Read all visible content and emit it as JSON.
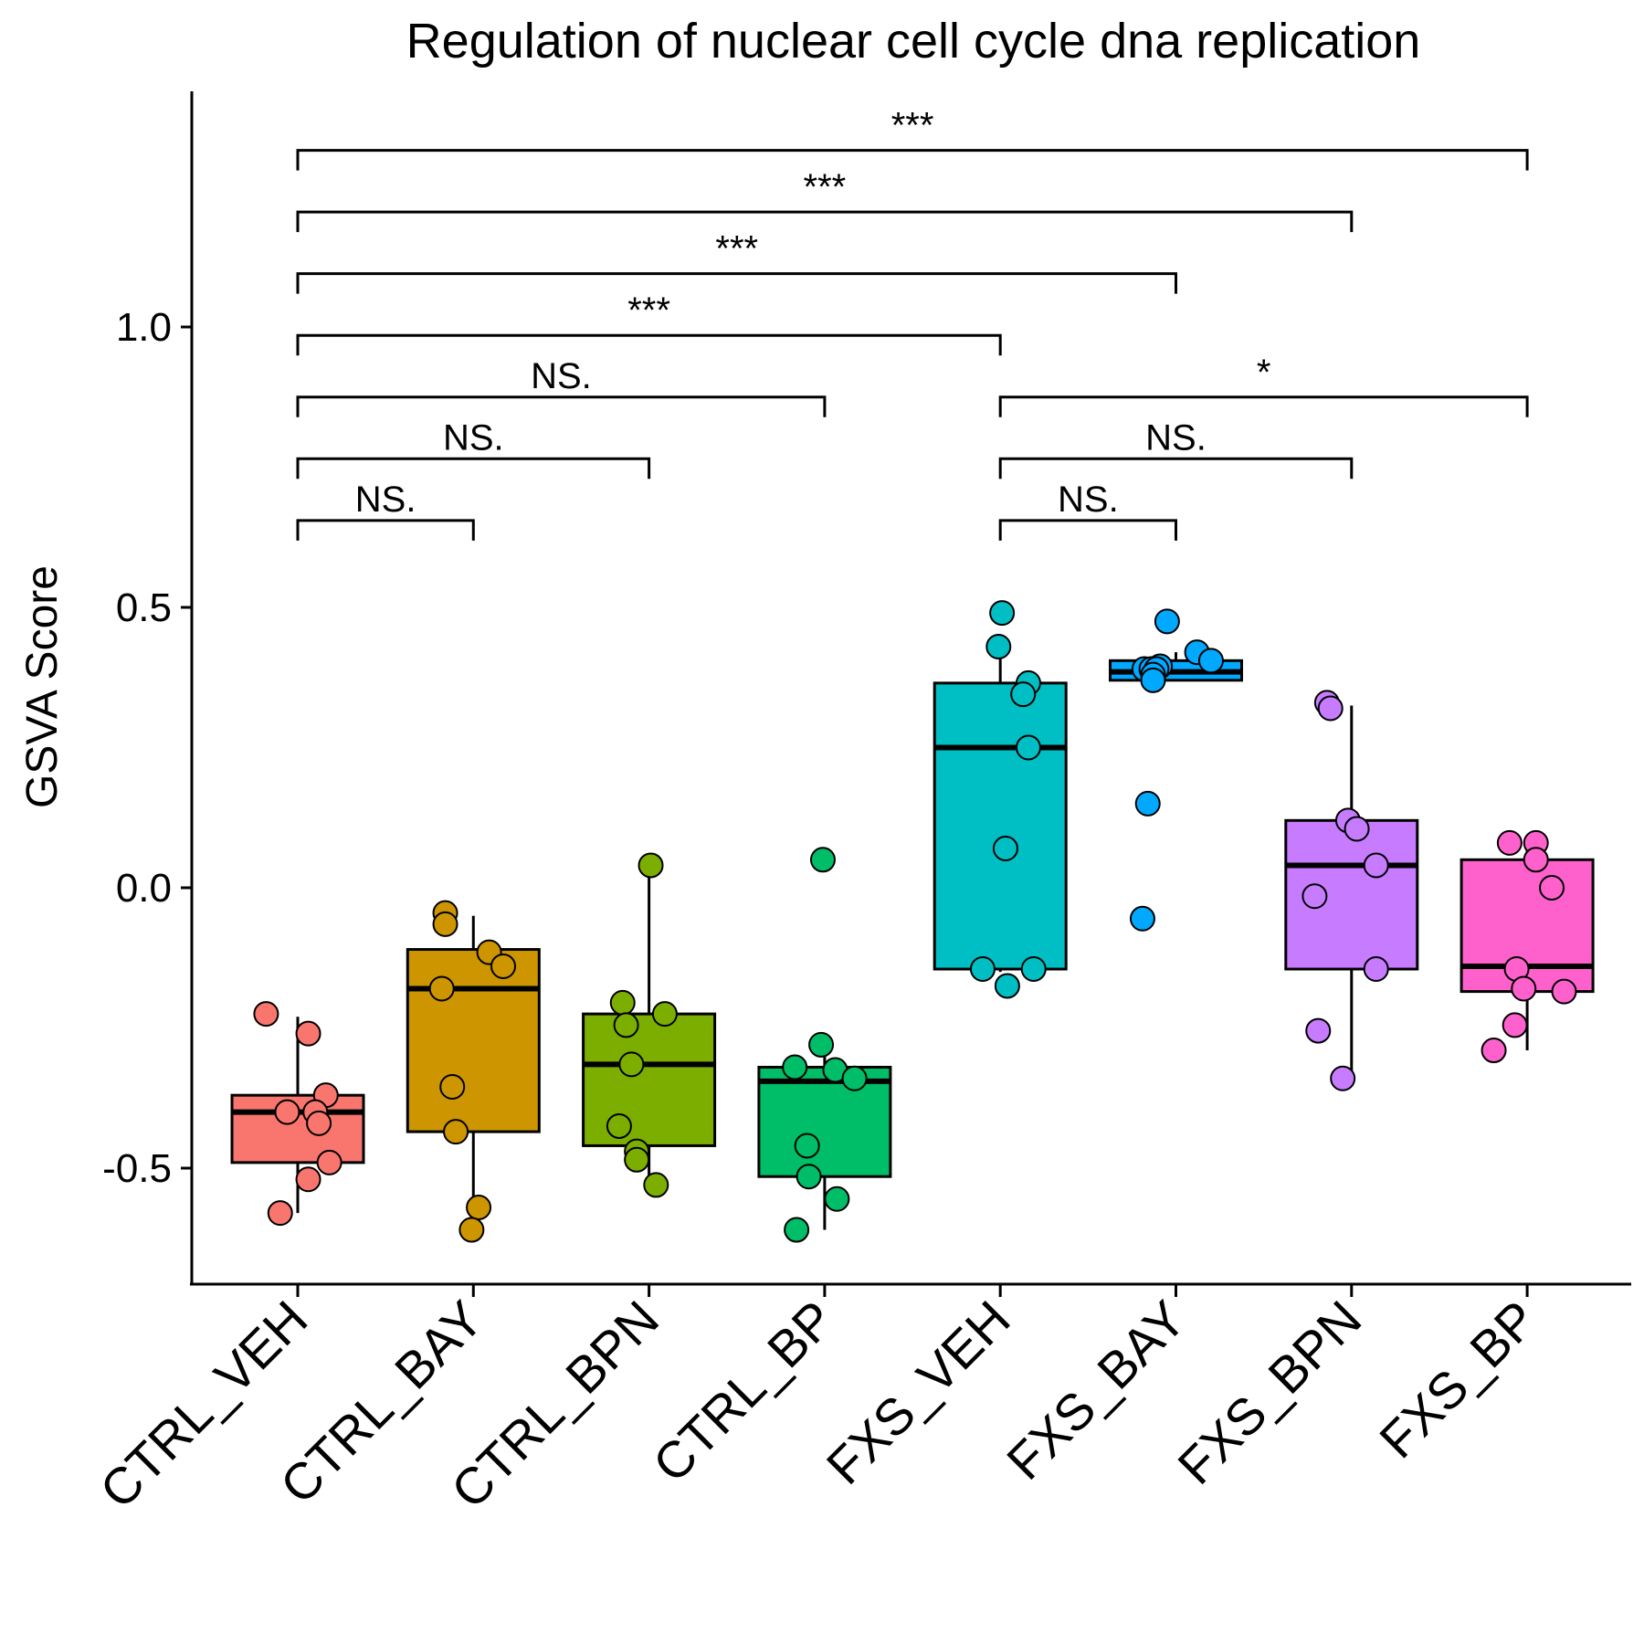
{
  "chart_data": {
    "type": "box",
    "title": "Regulation of nuclear cell cycle dna replication",
    "xlabel": "",
    "ylabel": "GSVA Score",
    "ylim": [
      -0.7,
      1.42
    ],
    "yticks": [
      -0.5,
      0.0,
      0.5,
      1.0
    ],
    "ytick_labels": [
      "-0.5",
      "0.0",
      "0.5",
      "1.0"
    ],
    "categories": [
      "CTRL_VEH",
      "CTRL_BAY",
      "CTRL_BPN",
      "CTRL_BP",
      "FXS_VEH",
      "FXS_BAY",
      "FXS_BPN",
      "FXS_BP"
    ],
    "colors": [
      "#F8766D",
      "#CD9600",
      "#7CAE00",
      "#00BE67",
      "#00BFC4",
      "#00A9FF",
      "#C77CFF",
      "#FF61CC"
    ],
    "grid": false,
    "legend": "none",
    "boxes": [
      {
        "name": "CTRL_VEH",
        "min": -0.58,
        "q1": -0.49,
        "median": -0.4,
        "q3": -0.37,
        "max": -0.23
      },
      {
        "name": "CTRL_BAY",
        "min": -0.61,
        "q1": -0.435,
        "median": -0.18,
        "q3": -0.11,
        "max": -0.05
      },
      {
        "name": "CTRL_BPN",
        "min": -0.53,
        "q1": -0.46,
        "median": -0.315,
        "q3": -0.225,
        "max": 0.04
      },
      {
        "name": "CTRL_BP",
        "min": -0.61,
        "q1": -0.515,
        "median": -0.345,
        "q3": -0.32,
        "max": -0.28
      },
      {
        "name": "FXS_VEH",
        "min": -0.15,
        "q1": -0.145,
        "median": 0.25,
        "q3": 0.365,
        "max": 0.43
      },
      {
        "name": "FXS_BAY",
        "min": 0.37,
        "q1": 0.37,
        "median": 0.385,
        "q3": 0.405,
        "max": 0.42
      },
      {
        "name": "FXS_BPN",
        "min": -0.34,
        "q1": -0.145,
        "median": 0.04,
        "q3": 0.12,
        "max": 0.325
      },
      {
        "name": "FXS_BP",
        "min": -0.29,
        "q1": -0.185,
        "median": -0.14,
        "q3": 0.05,
        "max": 0.08
      }
    ],
    "points": [
      {
        "group": 0,
        "x_offset": -0.18,
        "y": -0.225
      },
      {
        "group": 0,
        "x_offset": 0.06,
        "y": -0.26
      },
      {
        "group": 0,
        "x_offset": 0.16,
        "y": -0.37
      },
      {
        "group": 0,
        "x_offset": -0.06,
        "y": -0.4
      },
      {
        "group": 0,
        "x_offset": 0.1,
        "y": -0.4
      },
      {
        "group": 0,
        "x_offset": 0.12,
        "y": -0.42
      },
      {
        "group": 0,
        "x_offset": 0.18,
        "y": -0.49
      },
      {
        "group": 0,
        "x_offset": 0.06,
        "y": -0.52
      },
      {
        "group": 0,
        "x_offset": -0.1,
        "y": -0.58
      },
      {
        "group": 1,
        "x_offset": -0.16,
        "y": -0.045
      },
      {
        "group": 1,
        "x_offset": -0.16,
        "y": -0.065
      },
      {
        "group": 1,
        "x_offset": 0.09,
        "y": -0.115
      },
      {
        "group": 1,
        "x_offset": 0.17,
        "y": -0.14
      },
      {
        "group": 1,
        "x_offset": -0.18,
        "y": -0.18
      },
      {
        "group": 1,
        "x_offset": -0.12,
        "y": -0.355
      },
      {
        "group": 1,
        "x_offset": -0.1,
        "y": -0.435
      },
      {
        "group": 1,
        "x_offset": 0.03,
        "y": -0.57
      },
      {
        "group": 1,
        "x_offset": -0.01,
        "y": -0.61
      },
      {
        "group": 2,
        "x_offset": 0.01,
        "y": 0.04
      },
      {
        "group": 2,
        "x_offset": -0.15,
        "y": -0.205
      },
      {
        "group": 2,
        "x_offset": 0.09,
        "y": -0.225
      },
      {
        "group": 2,
        "x_offset": -0.13,
        "y": -0.245
      },
      {
        "group": 2,
        "x_offset": -0.1,
        "y": -0.315
      },
      {
        "group": 2,
        "x_offset": -0.17,
        "y": -0.425
      },
      {
        "group": 2,
        "x_offset": -0.07,
        "y": -0.47
      },
      {
        "group": 2,
        "x_offset": -0.07,
        "y": -0.485
      },
      {
        "group": 2,
        "x_offset": 0.04,
        "y": -0.53
      },
      {
        "group": 3,
        "x_offset": -0.01,
        "y": 0.05
      },
      {
        "group": 3,
        "x_offset": -0.02,
        "y": -0.28
      },
      {
        "group": 3,
        "x_offset": -0.17,
        "y": -0.32
      },
      {
        "group": 3,
        "x_offset": 0.06,
        "y": -0.325
      },
      {
        "group": 3,
        "x_offset": 0.17,
        "y": -0.34
      },
      {
        "group": 3,
        "x_offset": -0.1,
        "y": -0.46
      },
      {
        "group": 3,
        "x_offset": -0.09,
        "y": -0.515
      },
      {
        "group": 3,
        "x_offset": 0.07,
        "y": -0.555
      },
      {
        "group": 3,
        "x_offset": -0.16,
        "y": -0.61
      },
      {
        "group": 4,
        "x_offset": 0.01,
        "y": 0.49
      },
      {
        "group": 4,
        "x_offset": -0.01,
        "y": 0.43
      },
      {
        "group": 4,
        "x_offset": 0.16,
        "y": 0.365
      },
      {
        "group": 4,
        "x_offset": 0.13,
        "y": 0.345
      },
      {
        "group": 4,
        "x_offset": 0.16,
        "y": 0.25
      },
      {
        "group": 4,
        "x_offset": 0.03,
        "y": 0.07
      },
      {
        "group": 4,
        "x_offset": -0.1,
        "y": -0.145
      },
      {
        "group": 4,
        "x_offset": 0.19,
        "y": -0.145
      },
      {
        "group": 4,
        "x_offset": 0.04,
        "y": -0.175
      },
      {
        "group": 5,
        "x_offset": -0.05,
        "y": 0.475
      },
      {
        "group": 5,
        "x_offset": 0.12,
        "y": 0.42
      },
      {
        "group": 5,
        "x_offset": 0.2,
        "y": 0.405
      },
      {
        "group": 5,
        "x_offset": -0.09,
        "y": 0.395
      },
      {
        "group": 5,
        "x_offset": -0.18,
        "y": 0.39
      },
      {
        "group": 5,
        "x_offset": -0.14,
        "y": 0.39
      },
      {
        "group": 5,
        "x_offset": -0.11,
        "y": 0.39
      },
      {
        "group": 5,
        "x_offset": -0.13,
        "y": 0.38
      },
      {
        "group": 5,
        "x_offset": -0.13,
        "y": 0.37
      },
      {
        "group": 5,
        "x_offset": -0.16,
        "y": 0.15
      },
      {
        "group": 5,
        "x_offset": -0.19,
        "y": -0.055
      },
      {
        "group": 6,
        "x_offset": -0.14,
        "y": 0.33
      },
      {
        "group": 6,
        "x_offset": -0.12,
        "y": 0.32
      },
      {
        "group": 6,
        "x_offset": -0.02,
        "y": 0.12
      },
      {
        "group": 6,
        "x_offset": 0.03,
        "y": 0.105
      },
      {
        "group": 6,
        "x_offset": 0.14,
        "y": 0.04
      },
      {
        "group": 6,
        "x_offset": -0.21,
        "y": -0.015
      },
      {
        "group": 6,
        "x_offset": 0.14,
        "y": -0.145
      },
      {
        "group": 6,
        "x_offset": -0.19,
        "y": -0.255
      },
      {
        "group": 6,
        "x_offset": -0.05,
        "y": -0.34
      },
      {
        "group": 7,
        "x_offset": -0.1,
        "y": 0.08
      },
      {
        "group": 7,
        "x_offset": 0.05,
        "y": 0.08
      },
      {
        "group": 7,
        "x_offset": 0.05,
        "y": 0.05
      },
      {
        "group": 7,
        "x_offset": 0.14,
        "y": -0.0
      },
      {
        "group": 7,
        "x_offset": -0.06,
        "y": -0.145
      },
      {
        "group": 7,
        "x_offset": -0.02,
        "y": -0.18
      },
      {
        "group": 7,
        "x_offset": 0.21,
        "y": -0.185
      },
      {
        "group": 7,
        "x_offset": -0.07,
        "y": -0.245
      },
      {
        "group": 7,
        "x_offset": -0.19,
        "y": -0.29
      }
    ],
    "comparisons": [
      {
        "from": 0,
        "to": 1,
        "y": 0.655,
        "label": "NS."
      },
      {
        "from": 0,
        "to": 2,
        "y": 0.765,
        "label": "NS."
      },
      {
        "from": 0,
        "to": 3,
        "y": 0.875,
        "label": "NS."
      },
      {
        "from": 0,
        "to": 4,
        "y": 0.985,
        "label": "***"
      },
      {
        "from": 0,
        "to": 5,
        "y": 1.095,
        "label": "***"
      },
      {
        "from": 0,
        "to": 6,
        "y": 1.205,
        "label": "***"
      },
      {
        "from": 0,
        "to": 7,
        "y": 1.315,
        "label": "***"
      },
      {
        "from": 4,
        "to": 5,
        "y": 0.655,
        "label": "NS."
      },
      {
        "from": 4,
        "to": 6,
        "y": 0.765,
        "label": "NS."
      },
      {
        "from": 4,
        "to": 7,
        "y": 0.875,
        "label": "*"
      }
    ]
  }
}
